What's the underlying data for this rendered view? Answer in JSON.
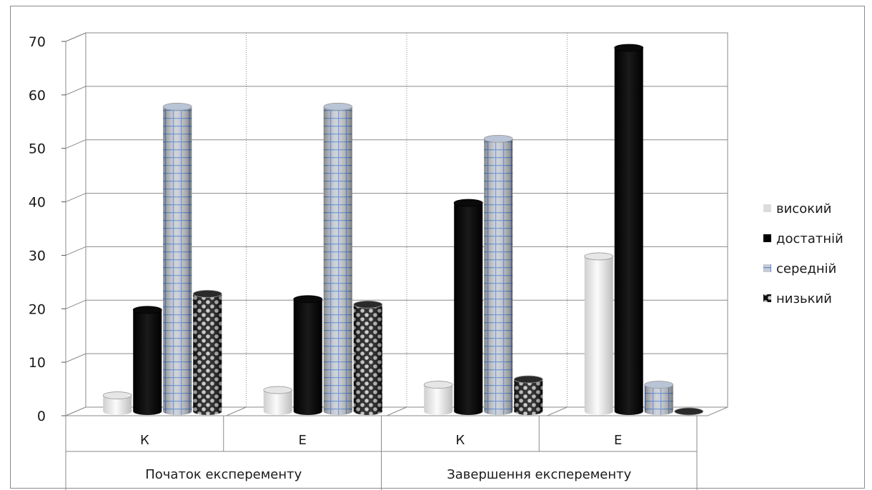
{
  "chart_data": {
    "type": "bar",
    "title": "",
    "xlabel": "",
    "ylabel": "",
    "ylim": [
      0,
      70
    ],
    "yticks": [
      "0",
      "10",
      "20",
      "30",
      "40",
      "50",
      "60",
      "70"
    ],
    "groups": [
      {
        "label": "Початок експеременту",
        "categories": [
          "К",
          "Е"
        ]
      },
      {
        "label": "Завершення  експеременту",
        "categories": [
          "К",
          "Е"
        ]
      }
    ],
    "categories": [
      "К",
      "Е",
      "К",
      "Е"
    ],
    "series": [
      {
        "name": "високий",
        "values": [
          3,
          4,
          5,
          29
        ]
      },
      {
        "name": "достатній",
        "values": [
          19,
          21,
          39,
          68
        ]
      },
      {
        "name": "середній",
        "values": [
          57,
          57,
          51,
          5
        ]
      },
      {
        "name": "низький",
        "values": [
          22,
          20,
          6,
          0
        ]
      }
    ],
    "grid": true,
    "legend": "right",
    "style": "3d-cylinder"
  }
}
